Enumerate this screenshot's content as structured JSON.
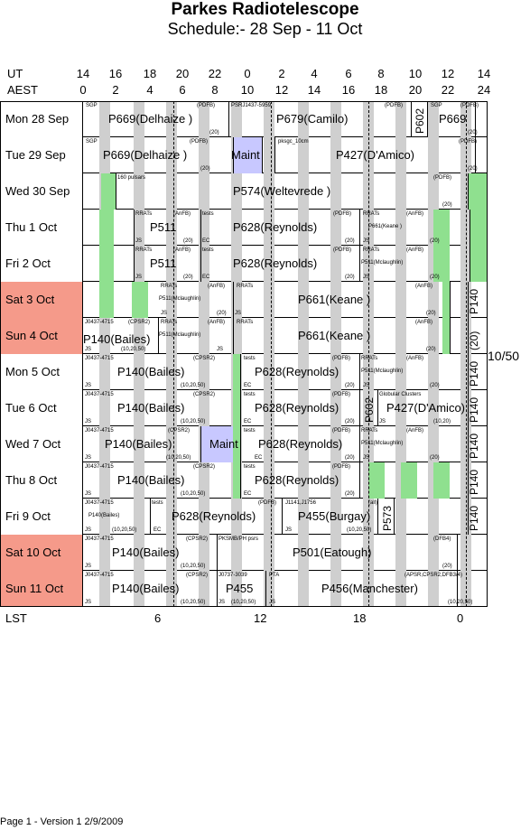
{
  "title": "Parkes Radiotelescope",
  "subtitle": "Schedule:- 28 Sep - 11 Oct",
  "header": {
    "ut_label": "UT",
    "aest_label": "AEST",
    "ut_ticks": [
      "14",
      "16",
      "18",
      "20",
      "22",
      "0",
      "2",
      "4",
      "6",
      "8",
      "10",
      "12",
      "14"
    ],
    "aest_ticks": [
      "0",
      "2",
      "4",
      "6",
      "8",
      "10",
      "12",
      "14",
      "16",
      "18",
      "20",
      "22",
      "24"
    ]
  },
  "days": [
    {
      "label": "Mon  28 Sep",
      "weekend": false
    },
    {
      "label": "Tue  29 Sep",
      "weekend": false
    },
    {
      "label": "Wed  30 Sep",
      "weekend": false
    },
    {
      "label": "Thu    1  Oct",
      "weekend": false
    },
    {
      "label": "Fri    2  Oct",
      "weekend": false
    },
    {
      "label": "Sat    3  Oct",
      "weekend": true
    },
    {
      "label": "Sun    4  Oct",
      "weekend": true
    },
    {
      "label": "Mon    5  Oct",
      "weekend": false
    },
    {
      "label": "Tue    6  Oct",
      "weekend": false
    },
    {
      "label": "Wed    7  Oct",
      "weekend": false
    },
    {
      "label": "Thu    8  Oct",
      "weekend": false
    },
    {
      "label": "Fri    9  Oct",
      "weekend": false
    },
    {
      "label": "Sat   10  Oct",
      "weekend": true
    },
    {
      "label": "Sun   11  Oct",
      "weekend": true
    }
  ],
  "blocks": {
    "r0": [
      "SGP",
      "P669(Delhaize )",
      "(PDFB)",
      "(20)",
      "PSRJ1437-5959",
      "P679(Camilo)",
      "(PDFB)",
      "P602",
      "SGP",
      "(PDFB)",
      "P669",
      "(20)"
    ],
    "r1": [
      "SGP",
      "P669(Delhaize )",
      "(PDFB)",
      "(20)",
      "Maint",
      "pksgc_10cm",
      "P427(D'Amico)",
      "(PDFB)",
      "(20)"
    ],
    "r2": [
      "160 pulsars",
      "P574(Weltevrede )",
      "(PDFB)",
      "(20)"
    ],
    "r3": [
      "RRATs",
      "(AnFB)",
      "tests",
      "P511",
      "P628(Reynolds)",
      "(PDFB)",
      "RRATs",
      "(AnFB)",
      "P661(Keane )",
      "JS",
      "(20)",
      "EC",
      "(20)",
      "JS",
      "(20)"
    ],
    "r4": [
      "RRATs",
      "(AnFB)",
      "tests",
      "P511",
      "P628(Reynolds)",
      "(PDFB)",
      "RRATs",
      "(AnFB)",
      "P511(Mclaughlin)",
      "JS",
      "(20)",
      "EC",
      "(20)",
      "JS",
      "(20)"
    ],
    "r5": [
      "RRATs",
      "(AnFB)",
      "RRATs",
      "P511(Mclaughlin)",
      "P661(Keane )",
      "(AnFB)",
      "JS",
      "(20)",
      "JS",
      "(20)",
      "P140"
    ],
    "r6": [
      "J0437-4715",
      "(CPSR2)",
      "RRATs",
      "(AnFB)",
      "RRATs",
      "P140(Bailes)",
      "P511(Mclaughlin)",
      "P661(Keane )",
      "(AnFB)",
      "JS",
      "(10,20,50)",
      "JS",
      "(20)",
      "(20)",
      "P140"
    ],
    "r7": [
      "J0437-4715",
      "(CPSR2)",
      "tests",
      "(PDFB)",
      "RRATs",
      "(AnFB)",
      "P140(Bailes)",
      "P628(Reynolds)",
      "P511(Mclaughlin)",
      "JS",
      "(10,20,50)",
      "EC",
      "(20)",
      "JS",
      "(20)",
      "P140"
    ],
    "r8": [
      "J0437-4715",
      "(CPSR2)",
      "tests",
      "(PDFB)",
      "Globular Clusters",
      "P140(Bailes)",
      "P628(Reynolds)",
      "P602",
      "P427(D'Amico)",
      "JS",
      "(10,20,50)",
      "EC",
      "(20)",
      "JS",
      "(10,20)",
      "P140"
    ],
    "r9": [
      "J0437-4715",
      "(CPSR2)",
      "tests",
      "(PDFB)",
      "RRATs",
      "(AnFB)",
      "P140(Bailes)",
      "Maint",
      "P628(Reynolds)",
      "P511(Mclaughlin)",
      "JS",
      "(10,20,50)",
      "EC",
      "(20)",
      "JS",
      "(20)",
      "P140"
    ],
    "r10": [
      "J0437-4715",
      "(CPSR2)",
      "tests",
      "(PDFB)",
      "P140(Bailes)",
      "P628(Reynolds)",
      "JS",
      "(10,20,50)",
      "EC",
      "(20)",
      "P140"
    ],
    "r11": [
      "J0437-4715",
      "tests",
      "(PDFB)",
      "J1141,J1756",
      "(all)",
      "P140(Bailes)",
      "P628(Reynolds)",
      "P455(Burgay)",
      "P573",
      "JS",
      "(10,20,50)",
      "EC",
      "JS",
      "(10,20,50)",
      "P140"
    ],
    "r12": [
      "J0437-4715",
      "(CPSR2)",
      "PKSMB/PH psrs",
      "(DFB4)",
      "P140(Bailes)",
      "P501(Eatough)",
      "JS",
      "(10,20,50)",
      "(20)"
    ],
    "r13": [
      "J0437-4715",
      "(CPSR2)",
      "J0737-3039",
      "PTA",
      "(APSR,CPSR2,DFB3/4)",
      "P140(Bailes)",
      "P455",
      "P456(Manchester)",
      "JS",
      "(10,20,50)",
      "JS",
      "(10,20,50)",
      "JS",
      "(10,20,50)"
    ]
  },
  "side_label": "10/50",
  "lst": {
    "label": "LST",
    "ticks": [
      "6",
      "12",
      "18",
      "0"
    ]
  },
  "footer": "Page 1 - Version 1  2/9/2009"
}
